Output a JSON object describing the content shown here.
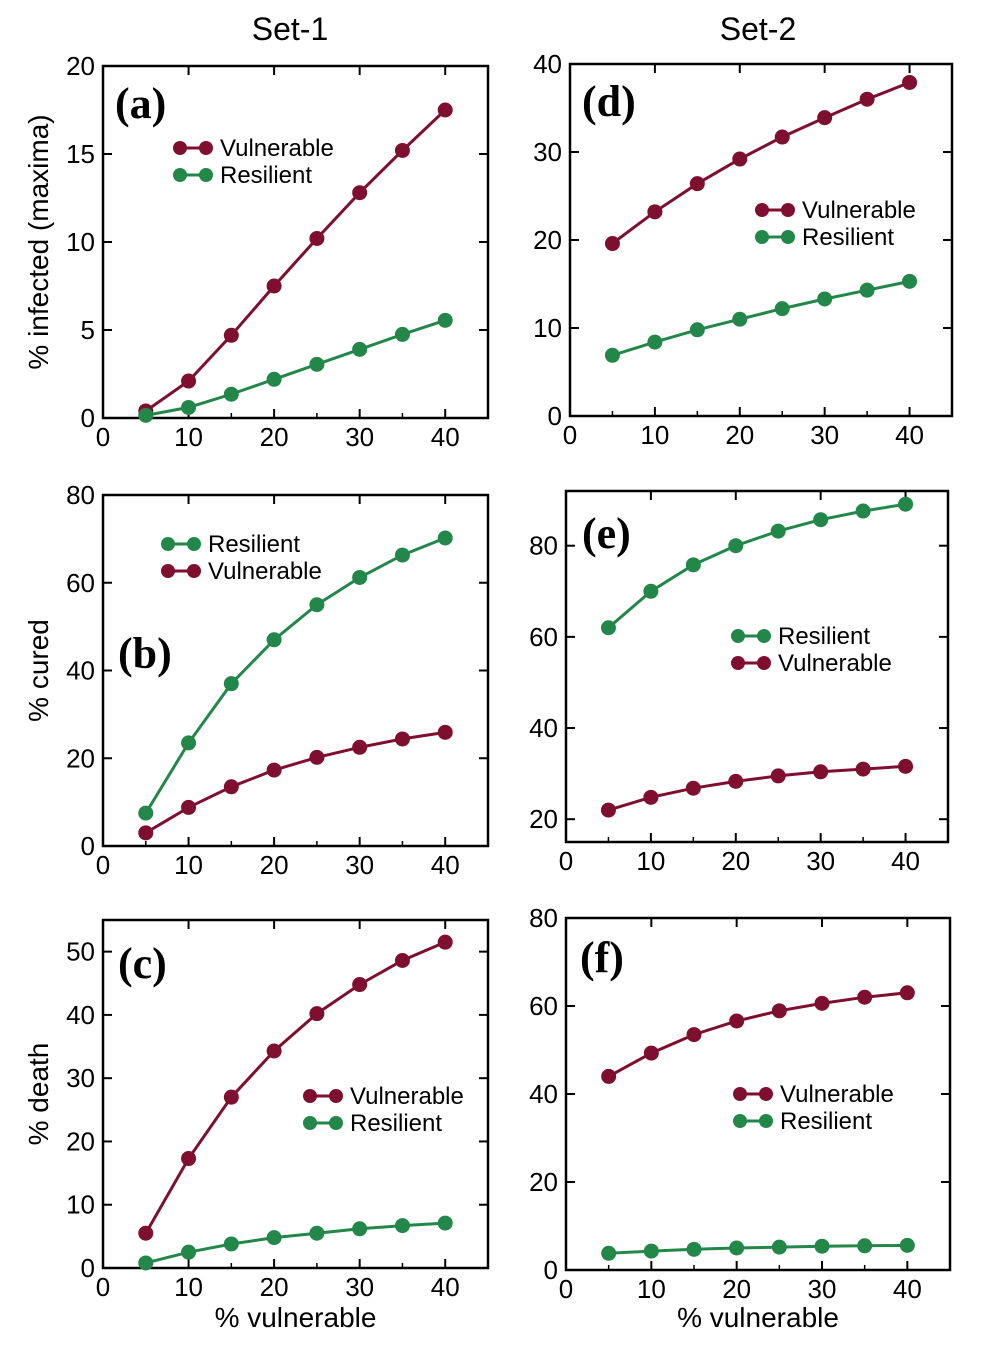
{
  "column_titles": {
    "left": "Set-1",
    "right": "Set-2"
  },
  "colors": {
    "vulnerable": "#7f0f2e",
    "resilient": "#23874a"
  },
  "chart_data": [
    {
      "panel": "(a)",
      "type": "line",
      "title": "",
      "xlabel": "",
      "ylabel": "% infected (maxima)",
      "x": [
        5,
        10,
        15,
        20,
        25,
        30,
        35,
        40
      ],
      "xlim": [
        0,
        45
      ],
      "ylim": [
        0,
        20
      ],
      "xticks": [
        0,
        10,
        20,
        30,
        40
      ],
      "yticks": [
        0,
        5,
        10,
        15,
        20
      ],
      "grid": false,
      "legend_position": "top-center",
      "series": [
        {
          "name": "Vulnerable",
          "color": "#7f0f2e",
          "values": [
            0.4,
            2.1,
            4.7,
            7.5,
            10.2,
            12.8,
            15.2,
            17.5
          ]
        },
        {
          "name": "Resilient",
          "color": "#23874a",
          "values": [
            0.15,
            0.6,
            1.35,
            2.2,
            3.05,
            3.9,
            4.75,
            5.55
          ]
        }
      ]
    },
    {
      "panel": "(b)",
      "type": "line",
      "title": "",
      "xlabel": "",
      "ylabel": "% cured",
      "x": [
        5,
        10,
        15,
        20,
        25,
        30,
        35,
        40
      ],
      "xlim": [
        0,
        45
      ],
      "ylim": [
        0,
        80
      ],
      "xticks": [
        0,
        10,
        20,
        30,
        40
      ],
      "yticks": [
        0,
        20,
        40,
        60,
        80
      ],
      "grid": false,
      "legend_position": "top-center",
      "series": [
        {
          "name": "Resilient",
          "color": "#23874a",
          "values": [
            7.5,
            23.5,
            37,
            47,
            55,
            61.2,
            66.3,
            70.2
          ]
        },
        {
          "name": "Vulnerable",
          "color": "#7f0f2e",
          "values": [
            3,
            8.8,
            13.5,
            17.3,
            20.2,
            22.5,
            24.4,
            25.9
          ]
        }
      ]
    },
    {
      "panel": "(c)",
      "type": "line",
      "title": "",
      "xlabel": "% vulnerable",
      "ylabel": "% death",
      "x": [
        5,
        10,
        15,
        20,
        25,
        30,
        35,
        40
      ],
      "xlim": [
        0,
        45
      ],
      "ylim": [
        0,
        55
      ],
      "xticks": [
        0,
        10,
        20,
        30,
        40
      ],
      "yticks": [
        0,
        10,
        20,
        30,
        40,
        50
      ],
      "grid": false,
      "legend_position": "center-right",
      "series": [
        {
          "name": "Vulnerable",
          "color": "#7f0f2e",
          "values": [
            5.5,
            17.3,
            27,
            34.3,
            40.2,
            44.8,
            48.6,
            51.5
          ]
        },
        {
          "name": "Resilient",
          "color": "#23874a",
          "values": [
            0.8,
            2.5,
            3.8,
            4.8,
            5.5,
            6.2,
            6.7,
            7.1
          ]
        }
      ]
    },
    {
      "panel": "(d)",
      "type": "line",
      "title": "",
      "xlabel": "",
      "ylabel": "",
      "x": [
        5,
        10,
        15,
        20,
        25,
        30,
        35,
        40
      ],
      "xlim": [
        0,
        45
      ],
      "ylim": [
        0,
        40
      ],
      "xticks": [
        0,
        10,
        20,
        30,
        40
      ],
      "yticks": [
        0,
        10,
        20,
        30,
        40
      ],
      "grid": false,
      "legend_position": "center-right",
      "series": [
        {
          "name": "Vulnerable",
          "color": "#7f0f2e",
          "values": [
            19.6,
            23.2,
            26.4,
            29.2,
            31.7,
            33.9,
            36,
            37.9
          ]
        },
        {
          "name": "Resilient",
          "color": "#23874a",
          "values": [
            6.9,
            8.4,
            9.8,
            11,
            12.2,
            13.3,
            14.3,
            15.3
          ]
        }
      ]
    },
    {
      "panel": "(e)",
      "type": "line",
      "title": "",
      "xlabel": "",
      "ylabel": "",
      "x": [
        5,
        10,
        15,
        20,
        25,
        30,
        35,
        40
      ],
      "xlim": [
        0,
        45
      ],
      "ylim": [
        15,
        92
      ],
      "xticks": [
        0,
        10,
        20,
        30,
        40
      ],
      "yticks": [
        20,
        40,
        60,
        80
      ],
      "grid": false,
      "legend_position": "center-right",
      "series": [
        {
          "name": "Resilient",
          "color": "#23874a",
          "values": [
            62,
            70,
            75.8,
            80,
            83.2,
            85.7,
            87.6,
            89.1
          ]
        },
        {
          "name": "Vulnerable",
          "color": "#7f0f2e",
          "values": [
            22,
            24.8,
            26.8,
            28.3,
            29.5,
            30.4,
            31,
            31.6
          ]
        }
      ]
    },
    {
      "panel": "(f)",
      "type": "line",
      "title": "",
      "xlabel": "% vulnerable",
      "ylabel": "",
      "x": [
        5,
        10,
        15,
        20,
        25,
        30,
        35,
        40
      ],
      "xlim": [
        0,
        45
      ],
      "ylim": [
        0,
        80
      ],
      "xticks": [
        0,
        10,
        20,
        30,
        40
      ],
      "yticks": [
        0,
        20,
        40,
        60,
        80
      ],
      "grid": false,
      "legend_position": "center-right",
      "series": [
        {
          "name": "Vulnerable",
          "color": "#7f0f2e",
          "values": [
            44,
            49.3,
            53.5,
            56.6,
            58.9,
            60.6,
            62,
            63
          ]
        },
        {
          "name": "Resilient",
          "color": "#23874a",
          "values": [
            3.8,
            4.3,
            4.7,
            5,
            5.2,
            5.4,
            5.5,
            5.6
          ]
        }
      ]
    }
  ]
}
